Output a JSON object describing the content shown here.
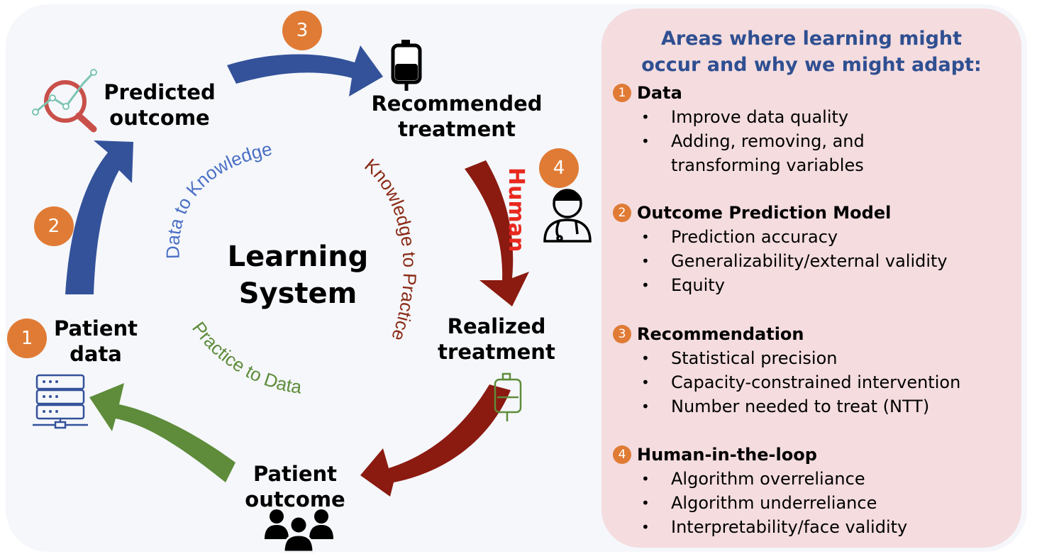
{
  "cycle": {
    "center_title": [
      "Learning",
      "System"
    ],
    "nodes": {
      "predicted_outcome": [
        "Predicted",
        "outcome"
      ],
      "recommended_treatment": [
        "Recommended",
        "treatment"
      ],
      "realized_treatment": [
        "Realized",
        "treatment"
      ],
      "patient_outcome": [
        "Patient",
        "outcome"
      ],
      "patient_data": [
        "Patient",
        "data"
      ]
    },
    "badges": [
      "1",
      "2",
      "3",
      "4"
    ],
    "arc_labels": {
      "data_to_knowledge": "Data to Knowledge",
      "knowledge_to_practice": "Knowledge to Practice",
      "practice_to_data": "Practice to Data",
      "human": "Human"
    },
    "colors": {
      "blue_arrow": "#34529a",
      "red_arrow": "#8b1a10",
      "green_arrow": "#5e8c3a",
      "badge": "#e07b35",
      "human_text": "#e8281e",
      "data_to_knowledge": "#4a6fc4",
      "knowledge_to_practice": "#8b2a15",
      "practice_to_data": "#5e8c3a"
    },
    "icons": [
      "magnifier-chart-icon",
      "iv-bag-icon",
      "doctor-icon",
      "iv-bag-outline-icon",
      "people-group-icon",
      "server-icon"
    ]
  },
  "panel": {
    "title": [
      "Areas where learning might",
      "occur and why we might adapt:"
    ],
    "sections": [
      {
        "num": "1",
        "title": "Data",
        "items": [
          "Improve data quality",
          "Adding, removing, and",
          "transforming variables"
        ]
      },
      {
        "num": "2",
        "title": "Outcome Prediction Model",
        "items": [
          "Prediction accuracy",
          "Generalizability/external validity",
          "Equity"
        ]
      },
      {
        "num": "3",
        "title": "Recommendation",
        "items": [
          "Statistical precision",
          "Capacity-constrained intervention",
          "Number needed to treat (NTT)"
        ]
      },
      {
        "num": "4",
        "title": "Human-in-the-loop",
        "items": [
          "Algorithm overreliance",
          "Algorithm underreliance",
          "Interpretability/face validity"
        ]
      }
    ],
    "colors": {
      "background": "#f4dcdf",
      "title": "#2f4f91"
    }
  }
}
